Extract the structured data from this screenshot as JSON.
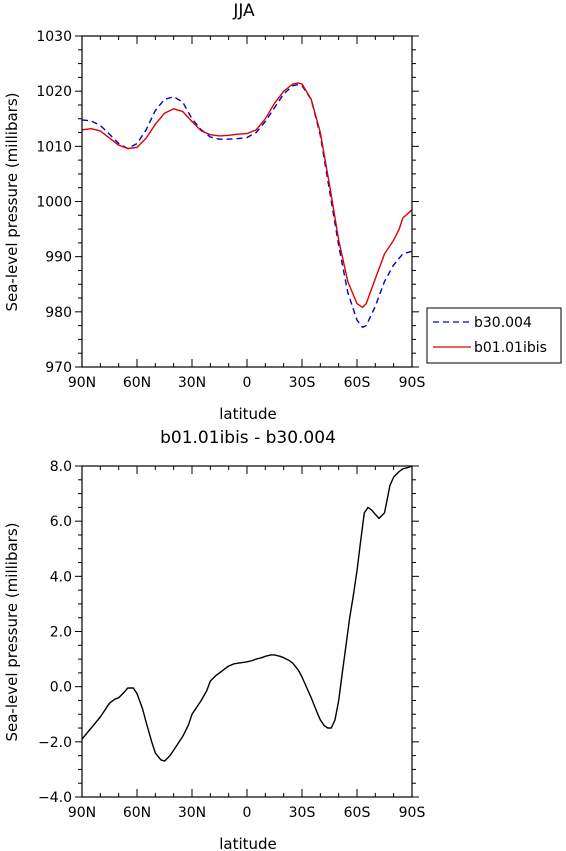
{
  "chart_data": [
    {
      "type": "line",
      "title": "JJA",
      "xlabel": "latitude",
      "ylabel": "Sea-level pressure (millibars)",
      "xlim": [
        90,
        -90
      ],
      "ylim": [
        970,
        1030
      ],
      "x_ticks": [
        90,
        60,
        30,
        0,
        -30,
        -60,
        -90
      ],
      "x_tick_labels": [
        "90N",
        "60N",
        "30N",
        "0",
        "30S",
        "60S",
        "90S"
      ],
      "y_ticks": [
        970,
        980,
        990,
        1000,
        1010,
        1020,
        1030
      ],
      "y_tick_labels": [
        "970",
        "980",
        "990",
        "1000",
        "1010",
        "1020",
        "1030"
      ],
      "legend_position": "right",
      "series": [
        {
          "name": "b30.004",
          "color": "#0000cc",
          "dash": "dashed",
          "x": [
            90,
            85,
            80,
            75,
            70,
            65,
            60,
            55,
            50,
            45,
            40,
            35,
            30,
            25,
            20,
            15,
            10,
            5,
            0,
            -5,
            -10,
            -15,
            -20,
            -25,
            -28,
            -30,
            -35,
            -40,
            -45,
            -50,
            -55,
            -60,
            -63,
            -65,
            -70,
            -75,
            -80,
            -85,
            -90
          ],
          "y": [
            1014.8,
            1014.6,
            1013.8,
            1012.2,
            1010.5,
            1009.6,
            1010.5,
            1013.0,
            1016.5,
            1018.5,
            1019.0,
            1018.0,
            1015.0,
            1013.0,
            1011.7,
            1011.3,
            1011.3,
            1011.4,
            1011.6,
            1012.5,
            1014.5,
            1017.0,
            1019.5,
            1021.0,
            1021.2,
            1021.0,
            1018.5,
            1012.0,
            1002.0,
            992.0,
            983.5,
            978.5,
            977.2,
            977.5,
            981.0,
            985.5,
            988.5,
            990.5,
            991.0
          ]
        },
        {
          "name": "b01.01ibis",
          "color": "#e00000",
          "dash": "solid",
          "x": [
            90,
            85,
            80,
            75,
            70,
            65,
            60,
            55,
            50,
            45,
            40,
            35,
            30,
            25,
            20,
            15,
            10,
            5,
            0,
            -5,
            -10,
            -15,
            -20,
            -25,
            -28,
            -30,
            -35,
            -40,
            -45,
            -50,
            -55,
            -60,
            -63,
            -65,
            -70,
            -75,
            -80,
            -83,
            -85,
            -90
          ],
          "y": [
            1013.0,
            1013.2,
            1012.8,
            1011.5,
            1010.2,
            1009.6,
            1009.8,
            1011.5,
            1014.0,
            1016.0,
            1016.8,
            1016.3,
            1014.5,
            1012.8,
            1012.1,
            1011.9,
            1012.0,
            1012.2,
            1012.3,
            1013.0,
            1015.0,
            1017.8,
            1020.0,
            1021.3,
            1021.5,
            1021.3,
            1018.5,
            1012.5,
            1003.0,
            993.0,
            985.5,
            981.5,
            980.8,
            981.5,
            986.0,
            990.5,
            993.0,
            995.0,
            997.0,
            998.5
          ]
        }
      ]
    },
    {
      "type": "line",
      "title": "b01.01ibis - b30.004",
      "xlabel": "latitude",
      "ylabel": "Sea-level pressure (millibars)",
      "xlim": [
        90,
        -90
      ],
      "ylim": [
        -4,
        8
      ],
      "x_ticks": [
        90,
        60,
        30,
        0,
        -30,
        -60,
        -90
      ],
      "x_tick_labels": [
        "90N",
        "60N",
        "30N",
        "0",
        "30S",
        "60S",
        "90S"
      ],
      "y_ticks": [
        -4,
        -2,
        0,
        2,
        4,
        6,
        8
      ],
      "y_tick_labels": [
        "−4.0",
        "−2.0",
        "0.0",
        "2.0",
        "4.0",
        "6.0",
        "8.0"
      ],
      "series": [
        {
          "color": "#000000",
          "dash": "solid",
          "x": [
            90,
            85,
            80,
            75,
            72,
            70,
            67,
            65,
            62,
            60,
            57,
            55,
            52,
            50,
            47,
            45,
            42,
            40,
            37,
            35,
            32,
            30,
            27,
            25,
            22,
            20,
            17,
            15,
            12,
            10,
            7,
            5,
            2,
            0,
            -3,
            -5,
            -8,
            -10,
            -13,
            -15,
            -18,
            -20,
            -23,
            -25,
            -28,
            -30,
            -33,
            -35,
            -38,
            -40,
            -42,
            -44,
            -46,
            -48,
            -50,
            -52,
            -54,
            -56,
            -58,
            -60,
            -62,
            -64,
            -66,
            -68,
            -70,
            -72,
            -75,
            -78,
            -80,
            -83,
            -85,
            -88,
            -90
          ],
          "y": [
            -1.9,
            -1.5,
            -1.1,
            -0.6,
            -0.45,
            -0.4,
            -0.2,
            -0.05,
            -0.05,
            -0.25,
            -0.8,
            -1.3,
            -2.0,
            -2.4,
            -2.65,
            -2.7,
            -2.5,
            -2.3,
            -2.0,
            -1.8,
            -1.4,
            -1.0,
            -0.7,
            -0.5,
            -0.15,
            0.2,
            0.4,
            0.5,
            0.65,
            0.75,
            0.83,
            0.85,
            0.88,
            0.9,
            0.95,
            1.0,
            1.05,
            1.1,
            1.15,
            1.15,
            1.1,
            1.05,
            0.95,
            0.85,
            0.6,
            0.35,
            -0.1,
            -0.4,
            -0.9,
            -1.2,
            -1.4,
            -1.5,
            -1.5,
            -1.2,
            -0.5,
            0.5,
            1.5,
            2.5,
            3.3,
            4.2,
            5.3,
            6.3,
            6.5,
            6.4,
            6.25,
            6.1,
            6.3,
            7.3,
            7.6,
            7.8,
            7.9,
            7.95,
            8.0
          ]
        }
      ]
    }
  ]
}
